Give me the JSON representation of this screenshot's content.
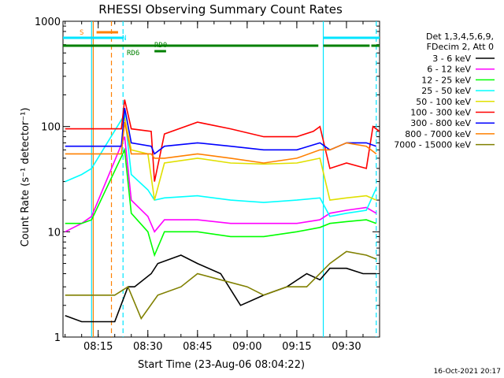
{
  "chart_data": {
    "type": "line",
    "title": "RHESSI Observing Summary Count Rates",
    "xlabel": "Start Time (23-Aug-06 08:04:22)",
    "ylabel": "Count Rate (s⁻¹ detector⁻¹)",
    "y_scale": "log",
    "ylim": [
      1,
      1000
    ],
    "xlim": [
      "08:04:22",
      "09:40"
    ],
    "x_ticks": [
      "08:15",
      "08:30",
      "08:45",
      "09:00",
      "09:15",
      "09:30"
    ],
    "y_ticks": [
      "1",
      "10",
      "100",
      "1000"
    ],
    "timestamp": "16-Oct-2021 20:17",
    "legend_header": [
      "Det 1,3,4,5,6,9,",
      "FDecim 2, Att 0"
    ],
    "legend_position": "right",
    "flags": {
      "S": {
        "label": "S",
        "color": "#ff8000",
        "intervals": [
          [
            "08:14:30",
            "08:21:00"
          ]
        ]
      },
      "N": {
        "label": "N",
        "color": "#00e5ff",
        "intervals": [
          [
            "08:04:22",
            "08:22:30"
          ],
          [
            "09:23:00",
            "09:40"
          ]
        ]
      },
      "RD0": {
        "label": "RD0",
        "color": "#008000",
        "intervals": [
          [
            "08:04:22",
            "09:21:30"
          ],
          [
            "09:23:00",
            "09:37:00"
          ],
          [
            "09:37:30",
            "09:40"
          ]
        ]
      },
      "RD6": {
        "label": "RD6",
        "color": "#008000",
        "intervals": [
          [
            "08:32:00",
            "08:35:30"
          ]
        ]
      }
    },
    "vlines": [
      {
        "time": "08:13:00",
        "color": "#00e5ff",
        "style": "solid"
      },
      {
        "time": "08:13:30",
        "color": "#ff8000",
        "style": "solid"
      },
      {
        "time": "08:19:00",
        "color": "#ff8000",
        "style": "dashed"
      },
      {
        "time": "08:22:30",
        "color": "#00e5ff",
        "style": "dashed"
      },
      {
        "time": "09:23:00",
        "color": "#00e5ff",
        "style": "solid"
      },
      {
        "time": "09:39:00",
        "color": "#00e5ff",
        "style": "dashed"
      }
    ],
    "series": [
      {
        "name": "3 - 6 keV",
        "color": "#000000",
        "points": [
          [
            "08:05",
            1.6
          ],
          [
            "08:10",
            1.4
          ],
          [
            "08:20",
            1.4
          ],
          [
            "08:24",
            3.0
          ],
          [
            "08:26",
            3.0
          ],
          [
            "08:31",
            4.0
          ],
          [
            "08:33",
            5.0
          ],
          [
            "08:40",
            6.0
          ],
          [
            "08:45",
            5.0
          ],
          [
            "08:52",
            4.0
          ],
          [
            "08:58",
            2.0
          ],
          [
            "09:05",
            2.5
          ],
          [
            "09:12",
            3.0
          ],
          [
            "09:18",
            4.0
          ],
          [
            "09:22",
            3.5
          ],
          [
            "09:25",
            4.5
          ],
          [
            "09:30",
            4.5
          ],
          [
            "09:35",
            4.0
          ],
          [
            "09:39",
            4.0
          ]
        ]
      },
      {
        "name": "6 - 12 keV",
        "color": "#ff00ff",
        "points": [
          [
            "08:05",
            10
          ],
          [
            "08:10",
            12
          ],
          [
            "08:13",
            14
          ],
          [
            "08:23",
            80
          ],
          [
            "08:25",
            20
          ],
          [
            "08:30",
            14
          ],
          [
            "08:32",
            10
          ],
          [
            "08:35",
            13
          ],
          [
            "08:45",
            13
          ],
          [
            "08:55",
            12
          ],
          [
            "09:05",
            12
          ],
          [
            "09:15",
            12
          ],
          [
            "09:22",
            13
          ],
          [
            "09:25",
            15
          ],
          [
            "09:30",
            16
          ],
          [
            "09:36",
            17
          ],
          [
            "09:39",
            15
          ]
        ]
      },
      {
        "name": "12 - 25 keV",
        "color": "#00ff00",
        "points": [
          [
            "08:05",
            12
          ],
          [
            "08:10",
            12
          ],
          [
            "08:13",
            13
          ],
          [
            "08:23",
            60
          ],
          [
            "08:25",
            15
          ],
          [
            "08:30",
            10
          ],
          [
            "08:32",
            6
          ],
          [
            "08:35",
            10
          ],
          [
            "08:45",
            10
          ],
          [
            "08:55",
            9
          ],
          [
            "09:05",
            9
          ],
          [
            "09:15",
            10
          ],
          [
            "09:22",
            11
          ],
          [
            "09:25",
            12
          ],
          [
            "09:30",
            12.5
          ],
          [
            "09:36",
            13
          ],
          [
            "09:39",
            12
          ]
        ]
      },
      {
        "name": "25 - 50 keV",
        "color": "#00ffff",
        "points": [
          [
            "08:05",
            30
          ],
          [
            "08:10",
            35
          ],
          [
            "08:13",
            40
          ],
          [
            "08:23",
            130
          ],
          [
            "08:25",
            35
          ],
          [
            "08:30",
            25
          ],
          [
            "08:32",
            20
          ],
          [
            "08:35",
            21
          ],
          [
            "08:45",
            22
          ],
          [
            "08:55",
            20
          ],
          [
            "09:05",
            19
          ],
          [
            "09:15",
            20
          ],
          [
            "09:22",
            21
          ],
          [
            "09:25",
            14
          ],
          [
            "09:30",
            15
          ],
          [
            "09:36",
            16
          ],
          [
            "09:39",
            26
          ]
        ]
      },
      {
        "name": "50 - 100 keV",
        "color": "#e0e000",
        "points": [
          [
            "08:23",
            120
          ],
          [
            "08:25",
            60
          ],
          [
            "08:30",
            55
          ],
          [
            "08:32",
            20
          ],
          [
            "08:35",
            45
          ],
          [
            "08:45",
            50
          ],
          [
            "08:55",
            45
          ],
          [
            "09:05",
            44
          ],
          [
            "09:15",
            45
          ],
          [
            "09:22",
            50
          ],
          [
            "09:25",
            20
          ],
          [
            "09:30",
            21
          ],
          [
            "09:36",
            22
          ],
          [
            "09:39",
            20
          ]
        ]
      },
      {
        "name": "100 - 300 keV",
        "color": "#ff0000",
        "points": [
          [
            "08:05",
            95
          ],
          [
            "08:10",
            95
          ],
          [
            "08:22",
            95
          ],
          [
            "08:23",
            180
          ],
          [
            "08:25",
            95
          ],
          [
            "08:31",
            90
          ],
          [
            "08:32",
            30
          ],
          [
            "08:35",
            85
          ],
          [
            "08:45",
            110
          ],
          [
            "08:55",
            95
          ],
          [
            "09:05",
            80
          ],
          [
            "09:15",
            80
          ],
          [
            "09:20",
            90
          ],
          [
            "09:22",
            100
          ],
          [
            "09:25",
            40
          ],
          [
            "09:30",
            45
          ],
          [
            "09:36",
            40
          ],
          [
            "09:38",
            100
          ],
          [
            "09:40",
            90
          ]
        ]
      },
      {
        "name": "300 - 800 keV",
        "color": "#0000ff",
        "points": [
          [
            "08:05",
            65
          ],
          [
            "08:10",
            65
          ],
          [
            "08:22",
            65
          ],
          [
            "08:23",
            150
          ],
          [
            "08:25",
            70
          ],
          [
            "08:31",
            65
          ],
          [
            "08:32",
            55
          ],
          [
            "08:35",
            65
          ],
          [
            "08:45",
            70
          ],
          [
            "08:55",
            65
          ],
          [
            "09:05",
            60
          ],
          [
            "09:15",
            60
          ],
          [
            "09:22",
            70
          ],
          [
            "09:25",
            60
          ],
          [
            "09:30",
            70
          ],
          [
            "09:36",
            70
          ],
          [
            "09:39",
            65
          ]
        ]
      },
      {
        "name": "800 - 7000 keV",
        "color": "#ff8000",
        "points": [
          [
            "08:05",
            55
          ],
          [
            "08:10",
            55
          ],
          [
            "08:22",
            55
          ],
          [
            "08:23",
            110
          ],
          [
            "08:25",
            55
          ],
          [
            "08:31",
            55
          ],
          [
            "08:32",
            50
          ],
          [
            "08:35",
            50
          ],
          [
            "08:45",
            55
          ],
          [
            "08:55",
            50
          ],
          [
            "09:05",
            45
          ],
          [
            "09:15",
            50
          ],
          [
            "09:22",
            60
          ],
          [
            "09:25",
            60
          ],
          [
            "09:30",
            70
          ],
          [
            "09:36",
            65
          ],
          [
            "09:39",
            55
          ]
        ]
      },
      {
        "name": "7000 - 15000 keV",
        "color": "#808000",
        "points": [
          [
            "08:05",
            2.5
          ],
          [
            "08:10",
            2.5
          ],
          [
            "08:20",
            2.5
          ],
          [
            "08:24",
            3.0
          ],
          [
            "08:28",
            1.5
          ],
          [
            "08:33",
            2.5
          ],
          [
            "08:40",
            3.0
          ],
          [
            "08:45",
            4.0
          ],
          [
            "08:52",
            3.5
          ],
          [
            "09:00",
            3.0
          ],
          [
            "09:05",
            2.5
          ],
          [
            "09:12",
            3.0
          ],
          [
            "09:18",
            3.0
          ],
          [
            "09:25",
            5.0
          ],
          [
            "09:30",
            6.5
          ],
          [
            "09:36",
            6.0
          ],
          [
            "09:39",
            5.5
          ]
        ]
      }
    ]
  }
}
